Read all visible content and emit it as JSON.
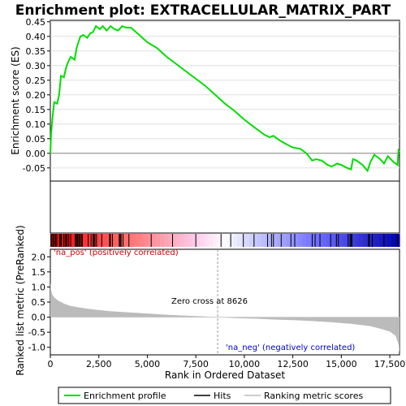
{
  "chart_data": {
    "type": "line",
    "title": "Enrichment plot: EXTRACELLULAR_MATRIX_PART",
    "colors": {
      "enrichment_line": "#00dd00",
      "hits": "#000000",
      "ranking_fill": "#bbbbbb",
      "pos_label": "#cc0000",
      "neg_label": "#0000cc",
      "zero_cross_line": "#999999"
    },
    "xlim": [
      0,
      18000
    ],
    "x_ticks": [
      "0",
      "2,500",
      "5,000",
      "7,500",
      "10,000",
      "12,500",
      "15,000",
      "17,500"
    ],
    "x_tick_values": [
      0,
      2500,
      5000,
      7500,
      10000,
      12500,
      15000,
      17500
    ],
    "xlabel": "Rank in Ordered Dataset",
    "top_panel": {
      "ylabel": "Enrichment score (ES)",
      "ylim": [
        -0.095,
        0.455
      ],
      "y_ticks": [
        "-0.05",
        "0.00",
        "0.05",
        "0.10",
        "0.15",
        "0.20",
        "0.25",
        "0.30",
        "0.35",
        "0.40",
        "0.45"
      ],
      "y_tick_values": [
        -0.05,
        0.0,
        0.05,
        0.1,
        0.15,
        0.2,
        0.25,
        0.3,
        0.35,
        0.4,
        0.45
      ],
      "es_profile": [
        [
          0,
          0.0
        ],
        [
          40,
          0.07
        ],
        [
          120,
          0.13
        ],
        [
          200,
          0.175
        ],
        [
          350,
          0.17
        ],
        [
          450,
          0.2
        ],
        [
          550,
          0.265
        ],
        [
          700,
          0.26
        ],
        [
          800,
          0.29
        ],
        [
          900,
          0.31
        ],
        [
          1050,
          0.33
        ],
        [
          1250,
          0.32
        ],
        [
          1350,
          0.36
        ],
        [
          1450,
          0.38
        ],
        [
          1550,
          0.4
        ],
        [
          1700,
          0.405
        ],
        [
          1900,
          0.395
        ],
        [
          2050,
          0.41
        ],
        [
          2200,
          0.415
        ],
        [
          2350,
          0.435
        ],
        [
          2550,
          0.425
        ],
        [
          2700,
          0.435
        ],
        [
          2900,
          0.42
        ],
        [
          3100,
          0.435
        ],
        [
          3300,
          0.425
        ],
        [
          3500,
          0.42
        ],
        [
          3700,
          0.435
        ],
        [
          3900,
          0.43
        ],
        [
          4150,
          0.43
        ],
        [
          4500,
          0.41
        ],
        [
          5000,
          0.38
        ],
        [
          5500,
          0.36
        ],
        [
          6000,
          0.33
        ],
        [
          6500,
          0.305
        ],
        [
          7000,
          0.28
        ],
        [
          7500,
          0.255
        ],
        [
          8000,
          0.23
        ],
        [
          8500,
          0.2
        ],
        [
          9000,
          0.17
        ],
        [
          9500,
          0.145
        ],
        [
          10000,
          0.115
        ],
        [
          10500,
          0.09
        ],
        [
          11000,
          0.065
        ],
        [
          11300,
          0.055
        ],
        [
          11500,
          0.06
        ],
        [
          11800,
          0.045
        ],
        [
          12200,
          0.03
        ],
        [
          12500,
          0.02
        ],
        [
          12900,
          0.015
        ],
        [
          13200,
          0.0
        ],
        [
          13500,
          -0.025
        ],
        [
          13700,
          -0.02
        ],
        [
          14000,
          -0.025
        ],
        [
          14300,
          -0.04
        ],
        [
          14500,
          -0.045
        ],
        [
          14800,
          -0.035
        ],
        [
          15000,
          -0.04
        ],
        [
          15300,
          -0.05
        ],
        [
          15500,
          -0.055
        ],
        [
          15600,
          -0.02
        ],
        [
          15800,
          -0.025
        ],
        [
          16100,
          -0.04
        ],
        [
          16350,
          -0.06
        ],
        [
          16500,
          -0.03
        ],
        [
          16700,
          -0.005
        ],
        [
          17000,
          -0.02
        ],
        [
          17200,
          -0.035
        ],
        [
          17400,
          -0.01
        ],
        [
          17700,
          -0.03
        ],
        [
          17900,
          -0.04
        ],
        [
          17950,
          0.01
        ],
        [
          18000,
          0.005
        ]
      ]
    },
    "hits": [
      30,
      80,
      150,
      210,
      270,
      330,
      480,
      520,
      560,
      680,
      760,
      820,
      870,
      950,
      1050,
      1280,
      1330,
      1380,
      1420,
      1480,
      1540,
      1600,
      1650,
      1950,
      2100,
      2200,
      2250,
      2300,
      2380,
      2650,
      3050,
      3100,
      3200,
      3550,
      3600,
      3650,
      3750,
      4050,
      5200,
      6300,
      7500,
      8800,
      9300,
      9950,
      10500,
      11200,
      11400,
      11500,
      11900,
      12400,
      12600,
      13500,
      13650,
      13900,
      14450,
      14750,
      14850,
      15350,
      15450,
      15500,
      15550,
      16400,
      16450,
      16600,
      17200,
      17900
    ],
    "heat_stops": [
      [
        0.0,
        "#ff0000"
      ],
      [
        0.25,
        "#ff7f7f"
      ],
      [
        0.42,
        "#ffccee"
      ],
      [
        0.5,
        "#ffffff"
      ],
      [
        0.58,
        "#ccccff"
      ],
      [
        0.78,
        "#6666ff"
      ],
      [
        1.0,
        "#0000aa"
      ]
    ],
    "bottom_panel": {
      "ylabel": "Ranked list metric (PreRanked)",
      "ylim": [
        -1.25,
        2.25
      ],
      "y_ticks": [
        "-1.0",
        "-0.5",
        "0.0",
        "0.5",
        "1.0",
        "1.5",
        "2.0"
      ],
      "y_tick_values": [
        -1.0,
        -0.5,
        0.0,
        0.5,
        1.0,
        1.5,
        2.0
      ],
      "metric_curve": [
        [
          0,
          1.15
        ],
        [
          40,
          0.9
        ],
        [
          100,
          0.75
        ],
        [
          200,
          0.65
        ],
        [
          400,
          0.55
        ],
        [
          700,
          0.45
        ],
        [
          1000,
          0.38
        ],
        [
          1500,
          0.32
        ],
        [
          2000,
          0.27
        ],
        [
          3000,
          0.2
        ],
        [
          4000,
          0.16
        ],
        [
          5000,
          0.12
        ],
        [
          6000,
          0.08
        ],
        [
          7000,
          0.05
        ],
        [
          8000,
          0.02
        ],
        [
          8626,
          0.0
        ],
        [
          9500,
          -0.03
        ],
        [
          10500,
          -0.05
        ],
        [
          11500,
          -0.08
        ],
        [
          12500,
          -0.1
        ],
        [
          13500,
          -0.13
        ],
        [
          14500,
          -0.17
        ],
        [
          15500,
          -0.22
        ],
        [
          16500,
          -0.3
        ],
        [
          17000,
          -0.38
        ],
        [
          17500,
          -0.48
        ],
        [
          17800,
          -0.62
        ],
        [
          17950,
          -0.9
        ],
        [
          18000,
          -1.2
        ]
      ],
      "zero_cross_rank": 8626,
      "zero_cross_label": "Zero cross at 8626",
      "pos_label": "'na_pos' (positively correlated)",
      "neg_label": "'na_neg' (negatively correlated)"
    },
    "legend": {
      "placement": "bottom",
      "entries": [
        "Enrichment profile",
        "Hits",
        "Ranking metric scores"
      ]
    }
  }
}
